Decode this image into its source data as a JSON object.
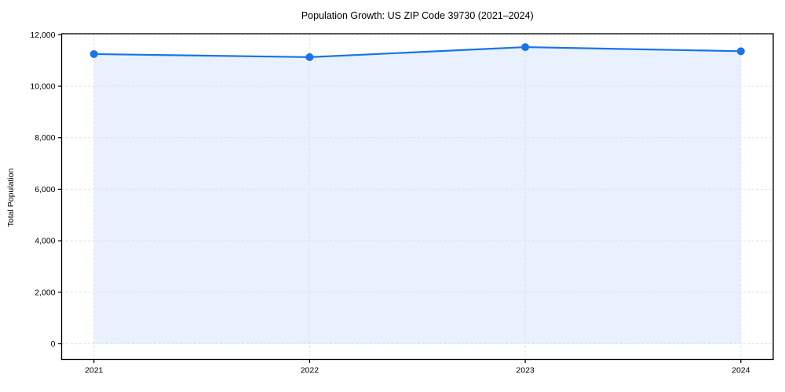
{
  "window": {
    "background": "#ffffff"
  },
  "chart_data": {
    "type": "line",
    "title": "Population Growth: US ZIP Code 39730 (2021–2024)",
    "xlabel": "",
    "ylabel": "Total Population",
    "x": [
      2021,
      2022,
      2023,
      2024
    ],
    "x_tick_labels": [
      "2021",
      "2022",
      "2023",
      "2024"
    ],
    "y_ticks": [
      0,
      2000,
      4000,
      6000,
      8000,
      10000,
      12000
    ],
    "y_tick_labels": [
      "0",
      "2,000",
      "4,000",
      "6,000",
      "8,000",
      "10,000",
      "12,000"
    ],
    "series": [
      {
        "name": "Total Population",
        "values": [
          11250,
          11130,
          11520,
          11360
        ]
      }
    ],
    "xlim": [
      2020.85,
      2024.15
    ],
    "ylim": [
      -610,
      12040
    ],
    "grid": {
      "show": true,
      "style": "dashed",
      "color": "#e0e0e0"
    },
    "legend": {
      "show": false
    },
    "area_fill": true,
    "area_baseline": 0,
    "styles": {
      "line_color": "#1a73e8",
      "marker": "circle",
      "marker_color": "#1a73e8",
      "area_fill_color": "rgba(26,115,232,0.10)",
      "frame_color": "#000000",
      "tick_color": "#000000",
      "text_color": "#000000",
      "plot_background": "#ffffff"
    }
  }
}
